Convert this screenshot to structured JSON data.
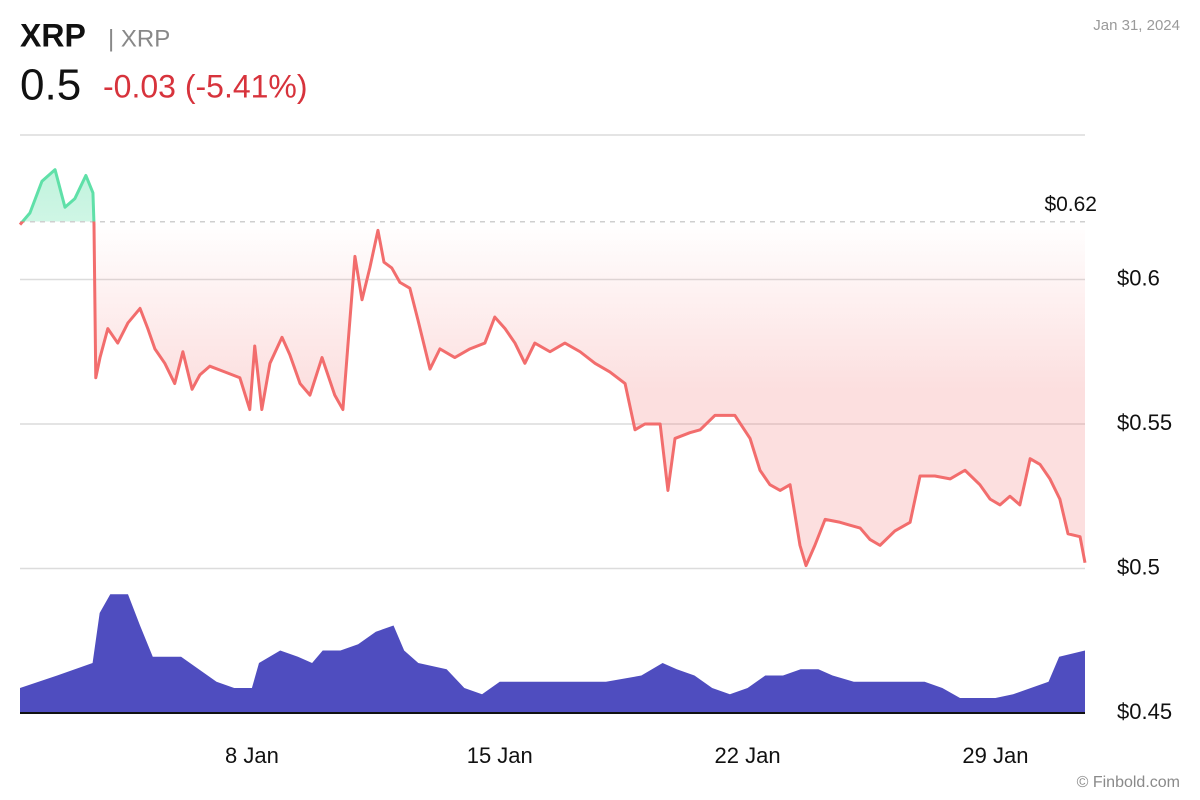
{
  "header": {
    "symbol": "XRP",
    "name": "| XRP",
    "price": 0.5,
    "change": "-0.03 (-5.41%)",
    "date": "Jan 31, 2024",
    "credit": "© Finbold.com"
  },
  "chart_data": {
    "type": "line",
    "x": [
      1.45,
      1.73,
      2.07,
      2.44,
      2.72,
      3.0,
      3.31,
      3.51,
      3.54,
      3.59,
      3.71,
      3.93,
      4.21,
      4.5,
      4.84,
      5.06,
      5.26,
      5.54,
      5.82,
      6.05,
      6.31,
      6.53,
      6.81,
      7.24,
      7.66,
      7.94,
      8.08,
      8.28,
      8.51,
      8.85,
      9.07,
      9.36,
      9.64,
      9.98,
      10.34,
      10.57,
      10.71,
      10.91,
      11.11,
      11.33,
      11.56,
      11.73,
      11.95,
      12.18,
      12.46,
      12.69,
      12.89,
      13.03,
      13.31,
      13.73,
      14.16,
      14.58,
      14.86,
      15.15,
      15.43,
      15.71,
      15.99,
      16.42,
      16.84,
      17.27,
      17.69,
      18.11,
      18.54,
      18.82,
      19.1,
      19.53,
      19.75,
      19.95,
      20.37,
      20.66,
      21.08,
      21.64,
      22.07,
      22.35,
      22.63,
      22.92,
      23.2,
      23.48,
      23.65,
      23.9,
      24.19,
      24.61,
      24.89,
      25.18,
      25.46,
      25.74,
      26.16,
      26.59,
      26.87,
      27.29,
      27.72,
      28.14,
      28.56,
      28.85,
      29.13,
      29.41,
      29.69,
      29.98,
      30.26,
      30.54,
      30.82,
      31.05,
      31.39,
      31.53
    ],
    "values": [
      0.619,
      0.623,
      0.634,
      0.638,
      0.625,
      0.628,
      0.636,
      0.63,
      0.619,
      0.566,
      0.573,
      0.583,
      0.578,
      0.585,
      0.59,
      0.583,
      0.576,
      0.571,
      0.564,
      0.575,
      0.562,
      0.567,
      0.57,
      0.568,
      0.566,
      0.555,
      0.577,
      0.555,
      0.571,
      0.58,
      0.574,
      0.564,
      0.56,
      0.573,
      0.56,
      0.555,
      0.577,
      0.608,
      0.593,
      0.604,
      0.617,
      0.606,
      0.604,
      0.599,
      0.597,
      0.586,
      0.576,
      0.569,
      0.576,
      0.573,
      0.576,
      0.578,
      0.587,
      0.583,
      0.578,
      0.571,
      0.578,
      0.575,
      0.578,
      0.575,
      0.571,
      0.568,
      0.564,
      0.548,
      0.55,
      0.55,
      0.527,
      0.545,
      0.547,
      0.548,
      0.553,
      0.553,
      0.545,
      0.534,
      0.529,
      0.527,
      0.529,
      0.508,
      0.501,
      0.508,
      0.517,
      0.516,
      0.515,
      0.514,
      0.51,
      0.508,
      0.513,
      0.516,
      0.532,
      0.532,
      0.531,
      0.534,
      0.529,
      0.524,
      0.522,
      0.525,
      0.522,
      0.538,
      0.536,
      0.531,
      0.524,
      0.512,
      0.511,
      0.502
    ],
    "color_up": "#5fe0a8",
    "color_down": "#f26d6d",
    "baseline": {
      "value": 0.62,
      "label": "$0.62"
    },
    "xlim": [
      1.45,
      31.53
    ],
    "xticks": [
      {
        "value": 8,
        "label": "8 Jan"
      },
      {
        "value": 15,
        "label": "15 Jan"
      },
      {
        "value": 22,
        "label": "22 Jan"
      },
      {
        "value": 29,
        "label": "29 Jan"
      }
    ],
    "ylim": [
      0.45,
      0.65
    ],
    "yticks": [
      {
        "value": 0.45,
        "label": "$0.45"
      },
      {
        "value": 0.5,
        "label": "$0.5"
      },
      {
        "value": 0.55,
        "label": "$0.55"
      },
      {
        "value": 0.6,
        "label": "$0.6"
      }
    ],
    "grid": true,
    "volume": {
      "color": "#4f4dbf",
      "x": [
        1.45,
        2.5,
        3.0,
        3.5,
        3.7,
        4.0,
        4.5,
        4.84,
        5.2,
        6.0,
        7.0,
        7.5,
        8.0,
        8.2,
        8.8,
        9.3,
        9.7,
        10.0,
        10.5,
        11.0,
        11.5,
        12.0,
        12.3,
        12.7,
        13.5,
        14.0,
        14.5,
        15.0,
        15.5,
        16.0,
        17.0,
        18.0,
        19.0,
        19.6,
        20.0,
        20.5,
        21.0,
        21.5,
        22.0,
        22.5,
        23.0,
        23.5,
        24.0,
        24.4,
        25.0,
        26.0,
        27.0,
        27.5,
        28.0,
        29.0,
        29.5,
        30.0,
        30.5,
        30.8,
        31.53
      ],
      "values": [
        20,
        30,
        35,
        40,
        80,
        95,
        95,
        70,
        45,
        45,
        25,
        20,
        20,
        40,
        50,
        45,
        40,
        50,
        50,
        55,
        65,
        70,
        50,
        40,
        35,
        20,
        15,
        25,
        25,
        25,
        25,
        25,
        30,
        40,
        35,
        30,
        20,
        15,
        20,
        30,
        30,
        35,
        35,
        30,
        25,
        25,
        25,
        20,
        12,
        12,
        15,
        20,
        25,
        45,
        50
      ]
    }
  }
}
